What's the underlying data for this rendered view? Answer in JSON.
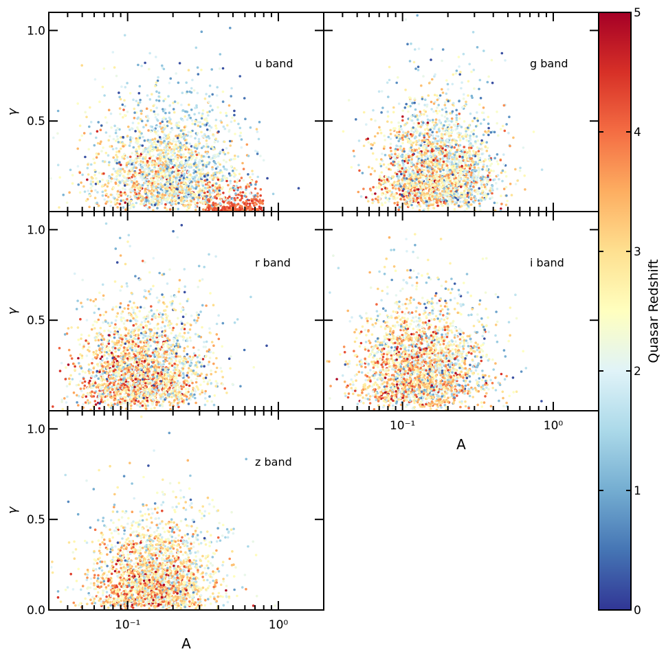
{
  "figure": {
    "title": "",
    "colorbar": {
      "label": "Quasar Redshift",
      "range": [
        0,
        5
      ],
      "ticks": [
        "0",
        "1",
        "2",
        "3",
        "4",
        "5"
      ],
      "colormap": [
        "#313695",
        "#4575b4",
        "#74add1",
        "#abd9e9",
        "#e0f3f8",
        "#ffffbf",
        "#fee090",
        "#fdae61",
        "#f46d43",
        "#d73027",
        "#a50026"
      ]
    }
  },
  "chart_data": [
    {
      "type": "scatter",
      "panel": "u",
      "annotation": "u band",
      "xlabel": "",
      "ylabel": "γ",
      "xscale": "log",
      "xlim": [
        0.03,
        2.0
      ],
      "ylim": [
        0.0,
        1.1
      ],
      "yticks": [
        "0.5",
        "1.0"
      ],
      "xticks": [],
      "cloud": {
        "n": 2200,
        "center_log10A": -0.72,
        "spread_log10A": 0.25,
        "mean_gamma": 0.17,
        "gamma_scale": 0.22,
        "mean_redshift": 2.3,
        "redshift_sd": 0.9
      },
      "high_z_tail": {
        "n": 260,
        "log10A_range": [
          -0.5,
          -0.1
        ],
        "gamma_max": 0.2,
        "redshift_range": [
          3.7,
          4.5
        ]
      }
    },
    {
      "type": "scatter",
      "panel": "g",
      "annotation": "g band",
      "xlabel": "",
      "ylabel": "",
      "xscale": "log",
      "xlim": [
        0.03,
        2.0
      ],
      "ylim": [
        0.0,
        1.1
      ],
      "yticks": [],
      "xticks": [],
      "cloud": {
        "n": 2400,
        "center_log10A": -0.74,
        "spread_log10A": 0.2,
        "mean_gamma": 0.27,
        "gamma_scale": 0.22,
        "mean_redshift": 2.5,
        "redshift_sd": 1.0
      }
    },
    {
      "type": "scatter",
      "panel": "r",
      "annotation": "r band",
      "xlabel": "",
      "ylabel": "γ",
      "xscale": "log",
      "xlim": [
        0.03,
        2.0
      ],
      "ylim": [
        0.0,
        1.1
      ],
      "yticks": [
        "0.5",
        "1.0"
      ],
      "xticks": [],
      "cloud": {
        "n": 2400,
        "center_log10A": -0.86,
        "spread_log10A": 0.22,
        "mean_gamma": 0.3,
        "gamma_scale": 0.23,
        "mean_redshift": 2.7,
        "redshift_sd": 1.0
      }
    },
    {
      "type": "scatter",
      "panel": "i",
      "annotation": "i band",
      "xlabel": "A",
      "ylabel": "",
      "xscale": "log",
      "xlim": [
        0.03,
        2.0
      ],
      "ylim": [
        0.0,
        1.1
      ],
      "yticks": [],
      "xticks": [
        "10⁻¹",
        "10⁰"
      ],
      "cloud": {
        "n": 2400,
        "center_log10A": -0.84,
        "spread_log10A": 0.22,
        "mean_gamma": 0.3,
        "gamma_scale": 0.24,
        "mean_redshift": 2.7,
        "redshift_sd": 1.0
      }
    },
    {
      "type": "scatter",
      "panel": "z",
      "annotation": "z band",
      "xlabel": "A",
      "ylabel": "γ",
      "xscale": "log",
      "xlim": [
        0.03,
        2.0
      ],
      "ylim": [
        0.0,
        1.1
      ],
      "yticks": [
        "0.0",
        "0.5",
        "1.0"
      ],
      "xticks": [
        "10⁻¹",
        "10⁰"
      ],
      "cloud": {
        "n": 2200,
        "center_log10A": -0.78,
        "spread_log10A": 0.22,
        "mean_gamma": 0.13,
        "gamma_scale": 0.2,
        "mean_redshift": 2.8,
        "redshift_sd": 0.9
      }
    }
  ]
}
